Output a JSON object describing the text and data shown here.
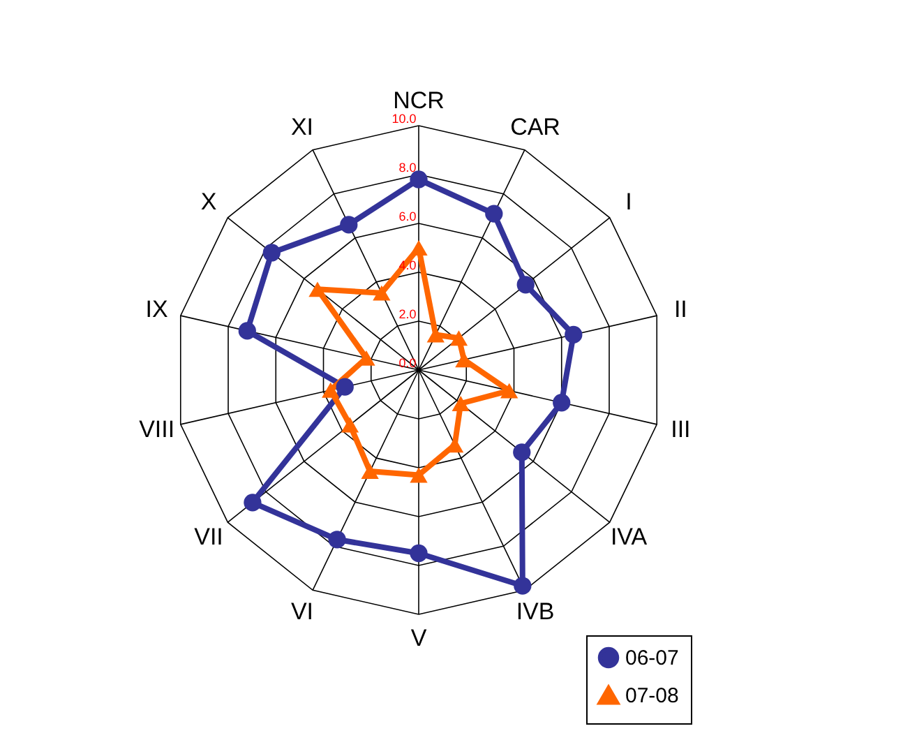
{
  "chart_data": {
    "type": "radar",
    "categories": [
      "NCR",
      "CAR",
      "I",
      "II",
      "III",
      "IVA",
      "IVB",
      "V",
      "VI",
      "VII",
      "VIII",
      "IX",
      "X",
      "XI"
    ],
    "series": [
      {
        "name": "06-07",
        "color": "#333399",
        "values": [
          7.8,
          7.1,
          5.6,
          6.5,
          6.0,
          5.4,
          9.8,
          7.5,
          7.7,
          8.7,
          3.1,
          7.2,
          7.7,
          6.6
        ],
        "marker": "circle"
      },
      {
        "name": "07-08",
        "color": "#ff6600",
        "values": [
          5.0,
          1.6,
          2.1,
          1.9,
          3.8,
          2.2,
          3.4,
          4.3,
          4.6,
          3.6,
          3.7,
          2.2,
          5.3,
          3.5
        ],
        "marker": "triangle"
      }
    ],
    "ylim": [
      0,
      10
    ],
    "yticks": [
      {
        "value": 0,
        "label": "0.0"
      },
      {
        "value": 2,
        "label": "2.0"
      },
      {
        "value": 4,
        "label": "4.0"
      },
      {
        "value": 6,
        "label": "6.0"
      },
      {
        "value": 8,
        "label": "8.0"
      },
      {
        "value": 10,
        "label": "10.0"
      }
    ],
    "grid": true,
    "legend": "bottom right"
  }
}
